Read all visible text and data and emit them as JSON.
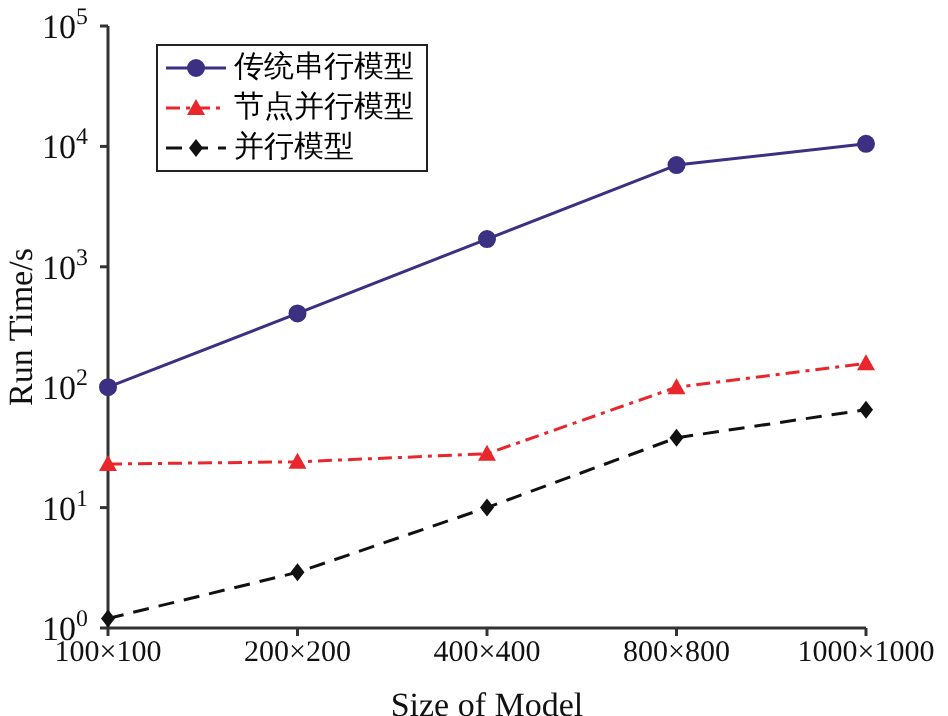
{
  "chart_data": {
    "type": "line",
    "xlabel": "Size of Model",
    "ylabel": "Run Time/s",
    "categories": [
      "100×100",
      "200×200",
      "400×400",
      "800×800",
      "1000×1000"
    ],
    "log": "y",
    "ylim": [
      1,
      100000
    ],
    "yticks": [
      {
        "value": 1,
        "label": "10$^{0}$"
      },
      {
        "value": 10,
        "label": "10$^{1}$"
      },
      {
        "value": 100,
        "label": "10$^{2}$"
      },
      {
        "value": 1000,
        "label": "10$^{3}$"
      },
      {
        "value": 10000,
        "label": "10$^{4}$"
      },
      {
        "value": 100000,
        "label": "10$^{5}$"
      }
    ],
    "legend": "top left",
    "grid": false,
    "series": [
      {
        "name": "传统串行模型",
        "color": "#3b3081",
        "marker": "circle",
        "line_style": "solid",
        "values": [
          100,
          410,
          1700,
          7000,
          10500
        ]
      },
      {
        "name": "节点并行模型",
        "color": "#e8262b",
        "marker": "triangle",
        "line_style": "dashdot",
        "values": [
          23,
          24,
          28,
          100,
          158
        ]
      },
      {
        "name": "并行模型",
        "color": "#111111",
        "marker": "diamond",
        "line_style": "dashed",
        "values": [
          1.2,
          2.9,
          10,
          38,
          65
        ]
      }
    ]
  }
}
